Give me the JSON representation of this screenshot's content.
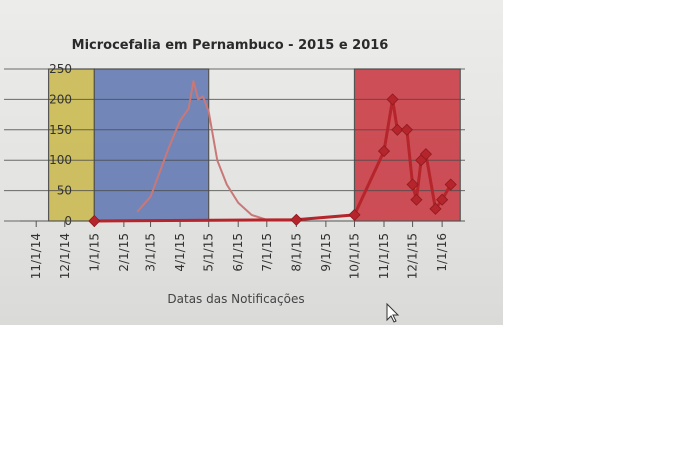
{
  "chart_data": {
    "type": "line",
    "title": "Microcefalia em Pernambuco - 2015 e 2016",
    "xlabel": "Datas das Notificações",
    "ylabel": "",
    "ylim": [
      0,
      250
    ],
    "y_ticks": [
      0,
      50,
      100,
      150,
      200,
      250
    ],
    "x_ticks": [
      "11/1/14",
      "12/1/14",
      "1/1/15",
      "2/1/15",
      "3/1/15",
      "4/1/15",
      "5/1/15",
      "6/1/15",
      "7/1/15",
      "8/1/15",
      "9/1/15",
      "10/1/15",
      "11/1/15",
      "12/1/15",
      "1/1/16"
    ],
    "grid": true,
    "shaded_bands": [
      {
        "x_start": "11/14/14",
        "x_end": "1/1/15",
        "color": "#c9b84a"
      },
      {
        "x_start": "1/1/15",
        "x_end": "5/1/15",
        "color": "#5d74b0"
      },
      {
        "x_start": "10/1/15",
        "x_end": "1/20/16",
        "color": "#c8323c"
      }
    ],
    "series": [
      {
        "color": "#c97878",
        "marker": "none",
        "points": [
          [
            "2/15/15",
            15
          ],
          [
            "3/1/15",
            40
          ],
          [
            "3/20/15",
            120
          ],
          [
            "4/1/15",
            165
          ],
          [
            "4/10/15",
            185
          ],
          [
            "4/15/15",
            230
          ],
          [
            "4/20/15",
            200
          ],
          [
            "4/25/15",
            205
          ],
          [
            "5/1/15",
            180
          ],
          [
            "5/10/15",
            100
          ],
          [
            "5/20/15",
            60
          ],
          [
            "6/1/15",
            30
          ],
          [
            "6/15/15",
            10
          ],
          [
            "7/1/15",
            2
          ]
        ]
      },
      {
        "color": "#b5252b",
        "marker": "diamond",
        "points": [
          [
            "1/1/15",
            0
          ],
          [
            "8/1/15",
            2
          ],
          [
            "10/1/15",
            10
          ],
          [
            "11/1/15",
            115
          ],
          [
            "11/10/15",
            200
          ],
          [
            "11/15/15",
            150
          ],
          [
            "11/25/15",
            150
          ],
          [
            "12/1/15",
            60
          ],
          [
            "12/5/15",
            35
          ],
          [
            "12/10/15",
            100
          ],
          [
            "12/15/15",
            110
          ],
          [
            "12/25/15",
            20
          ],
          [
            "1/1/16",
            35
          ],
          [
            "1/10/16",
            60
          ]
        ]
      }
    ]
  },
  "cursor_icon": "mouse-pointer-icon"
}
